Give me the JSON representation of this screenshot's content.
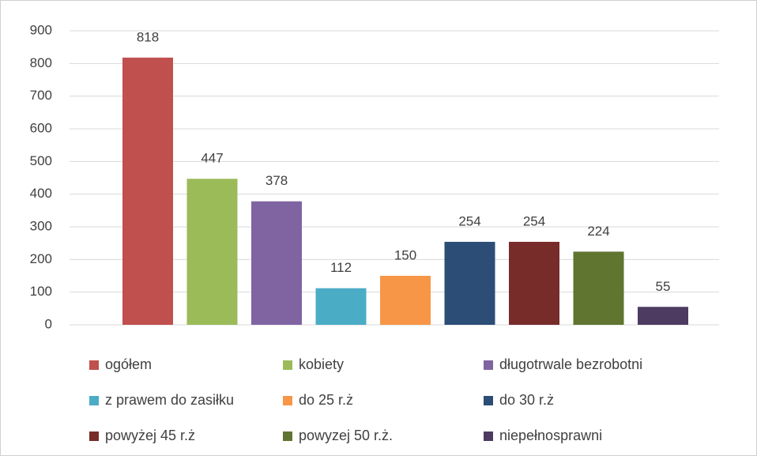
{
  "chart_data": {
    "type": "bar",
    "series": [
      {
        "name": "ogółem",
        "color": "#c0504d",
        "values": [
          818
        ]
      },
      {
        "name": "kobiety",
        "color": "#9bbb59",
        "values": [
          447
        ]
      },
      {
        "name": "długotrwale bezrobotni",
        "color": "#8064a2",
        "values": [
          378
        ]
      },
      {
        "name": "z prawem do zasiłku",
        "color": "#4bacc6",
        "values": [
          112
        ]
      },
      {
        "name": "do 25 r.ż",
        "color": "#f79646",
        "values": [
          150
        ]
      },
      {
        "name": "do 30 r.ż",
        "color": "#2c4d75",
        "values": [
          254
        ]
      },
      {
        "name": "powyżej 45 r.ż",
        "color": "#772c2a",
        "values": [
          254
        ]
      },
      {
        "name": "powyzej 50 r.ż.",
        "color": "#5f7530",
        "values": [
          224
        ]
      },
      {
        "name": "niepełnosprawni",
        "color": "#4d3b62",
        "values": [
          55
        ]
      }
    ],
    "ylim": [
      0,
      900
    ],
    "yticks": [
      0,
      100,
      200,
      300,
      400,
      500,
      600,
      700,
      800,
      900
    ],
    "grid": true
  }
}
